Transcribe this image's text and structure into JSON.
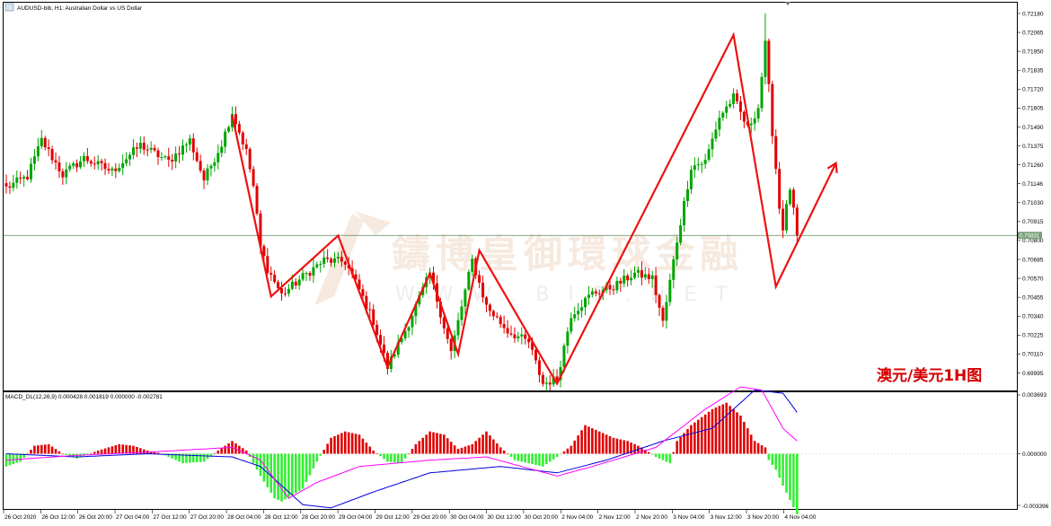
{
  "window": {
    "title": "AUDUSD-bib, H1:  Australian Dollar vs US Dollar",
    "icon": "chart-window-icon"
  },
  "annotation": {
    "text": "澳元/美元1H图",
    "color": "#d40000"
  },
  "watermark": {
    "text": "鑄博皇御環球金融",
    "subtext": "W W W . B I B . N E T"
  },
  "colors": {
    "bull": "#00a400",
    "bear": "#e00000",
    "zigzag": "#ee1111",
    "macd_signal": "#0000dd",
    "macd_main": "#ff00ff",
    "price_line": "#5c8a5c",
    "current_price_bg": "#7a9f7a"
  },
  "price_axis": {
    "ticks": [
      "0.72180",
      "0.72065",
      "0.71950",
      "0.71835",
      "0.71720",
      "0.71605",
      "0.71490",
      "0.71375",
      "0.71260",
      "0.71146",
      "0.71030",
      "0.70915",
      "0.70800",
      "0.70685",
      "0.70570",
      "0.70455",
      "0.70340",
      "0.70225",
      "0.70110",
      "0.69995"
    ],
    "current_price": "0.70831"
  },
  "macd": {
    "label": "MACD_DL(12,26,9) 0.000428 0.001819 0.000000 -0.002781",
    "ticks": [
      "0.003693",
      "0.000000",
      "-0.003396"
    ]
  },
  "time_axis": {
    "labels": [
      "26 Oct 2020",
      "26 Oct 12:00",
      "26 Oct 20:00",
      "27 Oct 04:00",
      "27 Oct 12:00",
      "27 Oct 20:00",
      "28 Oct 04:00",
      "28 Oct 12:00",
      "28 Oct 20:00",
      "29 Oct 04:00",
      "29 Oct 12:00",
      "29 Oct 20:00",
      "30 Oct 04:00",
      "30 Oct 12:00",
      "30 Oct 20:00",
      "2 Nov 04:00",
      "2 Nov 12:00",
      "2 Nov 20:00",
      "3 Nov 04:00",
      "3 Nov 12:00",
      "3 Nov 20:00",
      "4 Nov 04:00"
    ]
  },
  "chart_data": {
    "type": "candlestick",
    "symbol": "AUDUSD",
    "timeframe": "H1",
    "ylim": [
      0.699,
      0.7222
    ],
    "last_close": 0.70831,
    "anchors": [
      [
        0,
        0.7112
      ],
      [
        6,
        0.7119
      ],
      [
        10,
        0.7141
      ],
      [
        16,
        0.712
      ],
      [
        22,
        0.713
      ],
      [
        30,
        0.7122
      ],
      [
        38,
        0.7138
      ],
      [
        46,
        0.7128
      ],
      [
        52,
        0.7141
      ],
      [
        56,
        0.7117
      ],
      [
        61,
        0.7139
      ],
      [
        64,
        0.7158
      ],
      [
        68,
        0.7134
      ],
      [
        70,
        0.7113
      ],
      [
        72,
        0.7076
      ],
      [
        74,
        0.7063
      ],
      [
        78,
        0.7047
      ],
      [
        84,
        0.7058
      ],
      [
        90,
        0.7068
      ],
      [
        96,
        0.7067
      ],
      [
        100,
        0.705
      ],
      [
        104,
        0.7031
      ],
      [
        108,
        0.7003
      ],
      [
        114,
        0.703
      ],
      [
        120,
        0.706
      ],
      [
        126,
        0.7012
      ],
      [
        132,
        0.7068
      ],
      [
        136,
        0.704
      ],
      [
        142,
        0.7025
      ],
      [
        148,
        0.7018
      ],
      [
        152,
        0.6993
      ],
      [
        156,
        0.6996
      ],
      [
        160,
        0.7035
      ],
      [
        166,
        0.7048
      ],
      [
        172,
        0.7052
      ],
      [
        178,
        0.706
      ],
      [
        183,
        0.7057
      ],
      [
        186,
        0.703
      ],
      [
        190,
        0.708
      ],
      [
        194,
        0.7125
      ],
      [
        198,
        0.7128
      ],
      [
        202,
        0.7155
      ],
      [
        206,
        0.7167
      ],
      [
        210,
        0.7148
      ],
      [
        213,
        0.7161
      ],
      [
        215,
        0.7199
      ],
      [
        217,
        0.7146
      ],
      [
        218,
        0.7124
      ],
      [
        219,
        0.71
      ],
      [
        220,
        0.7088
      ],
      [
        222,
        0.7112
      ],
      [
        224,
        0.7083
      ]
    ],
    "zigzag": [
      [
        64,
        0.7156
      ],
      [
        75,
        0.7046
      ],
      [
        94,
        0.7083
      ],
      [
        108,
        0.7003
      ],
      [
        120,
        0.706
      ],
      [
        128,
        0.7011
      ],
      [
        134,
        0.7074
      ],
      [
        156,
        0.6993
      ],
      [
        206,
        0.7205
      ],
      [
        218,
        0.7052
      ],
      [
        235,
        0.7127
      ]
    ],
    "macd_histogram_anchors": [
      [
        0,
        -0.0008
      ],
      [
        4,
        -0.0005
      ],
      [
        8,
        0.0005
      ],
      [
        12,
        0.0006
      ],
      [
        16,
        0.0
      ],
      [
        20,
        -0.0003
      ],
      [
        26,
        0.0002
      ],
      [
        32,
        0.0006
      ],
      [
        36,
        0.0005
      ],
      [
        40,
        0.0002
      ],
      [
        44,
        0.0
      ],
      [
        50,
        -0.0006
      ],
      [
        56,
        -0.0005
      ],
      [
        60,
        0.0002
      ],
      [
        64,
        0.0008
      ],
      [
        68,
        0.0002
      ],
      [
        72,
        -0.0014
      ],
      [
        76,
        -0.0028
      ],
      [
        78,
        -0.003
      ],
      [
        84,
        -0.0022
      ],
      [
        88,
        -0.0005
      ],
      [
        92,
        0.001
      ],
      [
        96,
        0.0014
      ],
      [
        100,
        0.0012
      ],
      [
        104,
        0.0002
      ],
      [
        108,
        -0.0005
      ],
      [
        112,
        -0.0006
      ],
      [
        116,
        0.0006
      ],
      [
        120,
        0.0014
      ],
      [
        124,
        0.0012
      ],
      [
        128,
        0.0003
      ],
      [
        132,
        0.0006
      ],
      [
        136,
        0.0014
      ],
      [
        140,
        0.0004
      ],
      [
        144,
        -0.0004
      ],
      [
        148,
        -0.0006
      ],
      [
        152,
        -0.0008
      ],
      [
        156,
        -0.0002
      ],
      [
        160,
        0.0005
      ],
      [
        164,
        0.0018
      ],
      [
        168,
        0.0014
      ],
      [
        172,
        0.001
      ],
      [
        176,
        0.0008
      ],
      [
        180,
        0.0004
      ],
      [
        184,
        -0.0002
      ],
      [
        188,
        -0.0006
      ],
      [
        190,
        0.0008
      ],
      [
        194,
        0.0018
      ],
      [
        200,
        0.0028
      ],
      [
        204,
        0.0032
      ],
      [
        208,
        0.0024
      ],
      [
        212,
        0.0008
      ],
      [
        215,
        0.0004
      ],
      [
        216,
        -0.0004
      ],
      [
        218,
        -0.001
      ],
      [
        220,
        -0.002
      ],
      [
        224,
        -0.0038
      ]
    ],
    "macd_signal_anchors": [
      [
        0,
        0.0
      ],
      [
        20,
        -0.0002
      ],
      [
        40,
        0.0
      ],
      [
        64,
        -0.0002
      ],
      [
        72,
        -0.0008
      ],
      [
        84,
        -0.0032
      ],
      [
        92,
        -0.0034
      ],
      [
        104,
        -0.0024
      ],
      [
        120,
        -0.0012
      ],
      [
        140,
        -0.0008
      ],
      [
        156,
        -0.0012
      ],
      [
        170,
        -0.0004
      ],
      [
        186,
        0.0008
      ],
      [
        200,
        0.0016
      ],
      [
        212,
        0.004
      ],
      [
        220,
        0.0038
      ],
      [
        224,
        0.0026
      ]
    ],
    "macd_main_anchors": [
      [
        0,
        -0.0004
      ],
      [
        20,
        -0.0001
      ],
      [
        40,
        0.0001
      ],
      [
        64,
        0.0004
      ],
      [
        72,
        -0.0004
      ],
      [
        80,
        -0.0028
      ],
      [
        88,
        -0.0018
      ],
      [
        100,
        -0.0008
      ],
      [
        120,
        -0.0004
      ],
      [
        136,
        -0.0002
      ],
      [
        156,
        -0.0014
      ],
      [
        166,
        -0.0008
      ],
      [
        184,
        0.0004
      ],
      [
        198,
        0.0028
      ],
      [
        208,
        0.0042
      ],
      [
        214,
        0.004
      ],
      [
        220,
        0.0016
      ],
      [
        224,
        0.0008
      ]
    ]
  }
}
